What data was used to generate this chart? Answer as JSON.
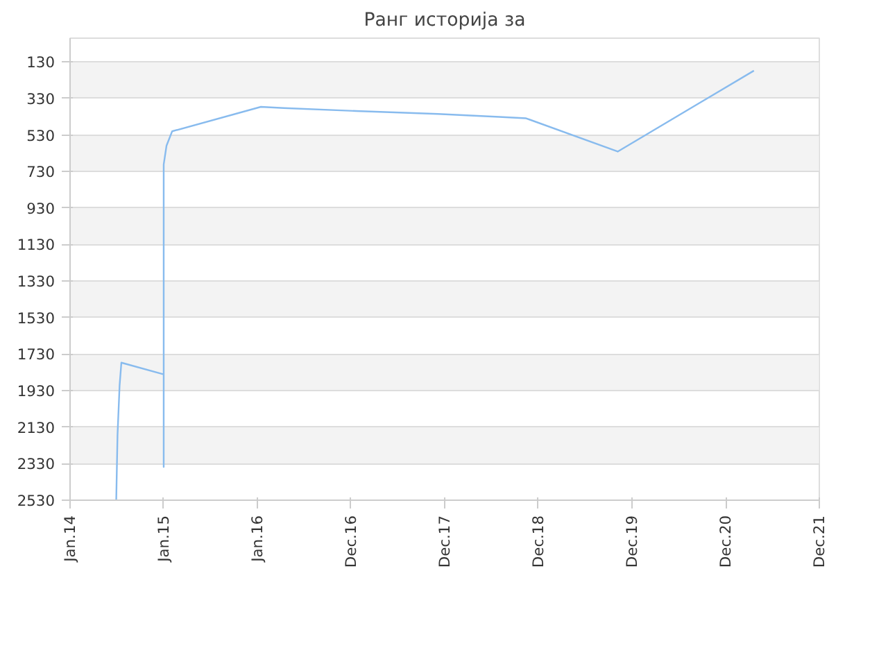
{
  "chart_data": {
    "type": "line",
    "title": "Ранг историја за",
    "x": [
      "2014-06-28",
      "2014-06-30",
      "2014-07-05",
      "2014-07-13",
      "2014-07-20",
      "2015-01-01",
      "2015-01-01",
      "2015-01-01",
      "2015-01-12",
      "2015-02-03",
      "2016-01-15",
      "2016-04-13",
      "2017-01-20",
      "2017-12-05",
      "2018-08-01",
      "2018-11-14",
      "2019-11-06",
      "2021-04-20"
    ],
    "series": [
      {
        "color": "#88bbee",
        "values": [
          2530,
          2530,
          2174,
          1904,
          1777,
          1841,
          2348,
          692,
          589,
          510,
          376,
          383,
          399,
          415,
          431,
          439,
          621,
          178
        ]
      }
    ],
    "xlim": [
      "2014-01-01",
      "2021-12-31"
    ],
    "xticks": [
      {
        "value": "2014-01-01",
        "label": "Jan.14"
      },
      {
        "value": "2015-01-01",
        "label": "Jan.15"
      },
      {
        "value": "2016-01-01",
        "label": "Jan.16"
      },
      {
        "value": "2016-12-31",
        "label": "Dec.16"
      },
      {
        "value": "2017-12-31",
        "label": "Dec.17"
      },
      {
        "value": "2018-12-31",
        "label": "Dec.18"
      },
      {
        "value": "2019-12-31",
        "label": "Dec.19"
      },
      {
        "value": "2020-12-31",
        "label": "Dec.20"
      },
      {
        "value": "2021-12-31",
        "label": "Dec.21"
      }
    ],
    "ylim": [
      2530,
      0
    ],
    "yticks": [
      130,
      330,
      530,
      730,
      930,
      1130,
      1330,
      1530,
      1730,
      1930,
      2130,
      2330,
      2530
    ],
    "grid": "y",
    "marker": "none",
    "line_style": "solid"
  }
}
